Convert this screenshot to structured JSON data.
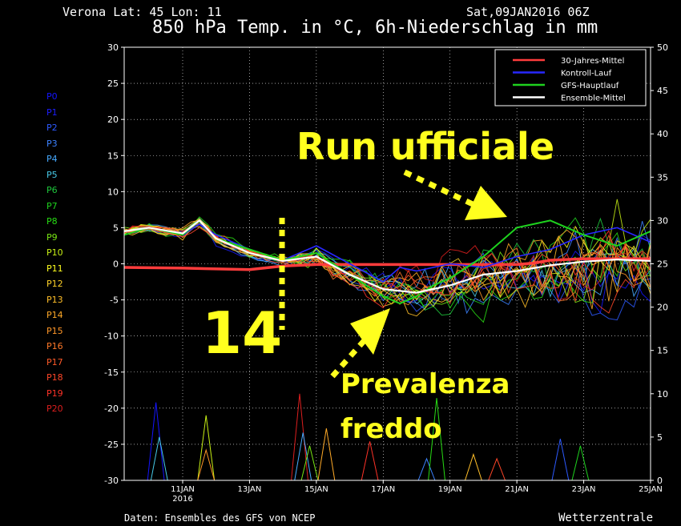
{
  "header": {
    "location": "Verona   Lat: 45 Lon: 11",
    "run_date": "Sat,09JAN2016 06Z",
    "title": "850 hPa Temp. in °C, 6h-Niederschlag in mm"
  },
  "footer": {
    "source": "Daten: Ensembles des GFS von NCEP",
    "brand": "Wetterzentrale"
  },
  "members": [
    {
      "label": "P0",
      "color": "#1414ff"
    },
    {
      "label": "P1",
      "color": "#1e1eff"
    },
    {
      "label": "P2",
      "color": "#2d5aff"
    },
    {
      "label": "P3",
      "color": "#3c82ff"
    },
    {
      "label": "P4",
      "color": "#46aaff"
    },
    {
      "label": "P5",
      "color": "#46c8e6"
    },
    {
      "label": "P6",
      "color": "#1ec83c"
    },
    {
      "label": "P7",
      "color": "#1ed21e"
    },
    {
      "label": "P8",
      "color": "#28dc14"
    },
    {
      "label": "P9",
      "color": "#78e614"
    },
    {
      "label": "P10",
      "color": "#c8f014"
    },
    {
      "label": "P11",
      "color": "#ffff1e"
    },
    {
      "label": "P12",
      "color": "#ffd228"
    },
    {
      "label": "P13",
      "color": "#ffbe28"
    },
    {
      "label": "P14",
      "color": "#ffaa28"
    },
    {
      "label": "P15",
      "color": "#ff9628"
    },
    {
      "label": "P16",
      "color": "#ff7828"
    },
    {
      "label": "P17",
      "color": "#ff5a28"
    },
    {
      "label": "P18",
      "color": "#ff4628"
    },
    {
      "label": "P19",
      "color": "#ff3228"
    },
    {
      "label": "P20",
      "color": "#dc1e1e"
    }
  ],
  "annotations": {
    "run": "Run ufficiale",
    "prevalenza": "Prevalenza",
    "freddo": "freddo",
    "day": "14"
  },
  "chart_data": {
    "type": "line",
    "x_ticks": [
      "11JAN",
      "13JAN",
      "15JAN",
      "17JAN",
      "19JAN",
      "21JAN",
      "23JAN",
      "25JAN"
    ],
    "x_tick_sub": "2016",
    "x_range_days": [
      9.25,
      25
    ],
    "ylim_left": [
      -30,
      30
    ],
    "ylim_right": [
      0,
      50
    ],
    "y_ticks_left": [
      30,
      25,
      20,
      15,
      10,
      5,
      0,
      -5,
      -10,
      -15,
      -20,
      -25,
      -30
    ],
    "y_ticks_right": [
      50,
      45,
      40,
      35,
      30,
      25,
      20,
      15,
      10,
      5,
      0
    ],
    "grid": "dotted",
    "legend_position": "top-right",
    "series": [
      {
        "name": "30-Jahres-Mittel",
        "color": "#ff3c3c",
        "x": [
          9.25,
          11,
          13,
          14,
          15,
          17,
          19,
          21,
          21.5,
          22,
          23,
          24,
          25
        ],
        "y": [
          -0.5,
          -0.6,
          -0.8,
          -0.3,
          -0.1,
          -0.1,
          -0.1,
          -0.1,
          0.1,
          0.5,
          0.7,
          0.7,
          0.7
        ]
      },
      {
        "name": "Kontroll-Lauf",
        "color": "#2828ff",
        "x": [
          9.25,
          10,
          11,
          11.5,
          12,
          13,
          14,
          15,
          16,
          17,
          17.5,
          18,
          18.5,
          19,
          20,
          21,
          22,
          23,
          24,
          25
        ],
        "y": [
          4.5,
          5,
          4,
          5.5,
          4,
          2,
          0.5,
          2.5,
          0,
          -2.5,
          -0.5,
          -1,
          -0.5,
          0,
          -0.5,
          1,
          2,
          4,
          5,
          3
        ]
      },
      {
        "name": "GFS-Hauptlauf",
        "color": "#1ed21e",
        "x": [
          9.25,
          10,
          11,
          11.5,
          12,
          13,
          14,
          15,
          16,
          16.5,
          17,
          17.5,
          18,
          18.5,
          19,
          20,
          21,
          22,
          23,
          24,
          25
        ],
        "y": [
          4,
          5,
          4,
          6,
          3.5,
          2,
          0.5,
          1.5,
          -1.5,
          -3,
          -4.5,
          -5.5,
          -4.5,
          -3,
          -2,
          1,
          5,
          6,
          4,
          2.5,
          4.5
        ]
      },
      {
        "name": "Ensemble-Mittel",
        "color": "#ffffff",
        "x": [
          9.25,
          10,
          11,
          11.5,
          12,
          13,
          14,
          15,
          16,
          17,
          18,
          19,
          20,
          21,
          22,
          23,
          24,
          25
        ],
        "y": [
          4.5,
          5,
          4.2,
          6,
          3.5,
          1.5,
          0.4,
          1,
          -1.5,
          -3.5,
          -4,
          -3,
          -1.5,
          -1,
          -0.2,
          0.3,
          0.6,
          0.4
        ]
      }
    ],
    "precip_peaks_mm": [
      {
        "x": 10.2,
        "v": 9
      },
      {
        "x": 10.3,
        "v": 5
      },
      {
        "x": 11.7,
        "v": 7.5
      },
      {
        "x": 11.7,
        "v": 3.5
      },
      {
        "x": 14.5,
        "v": 10
      },
      {
        "x": 14.6,
        "v": 5.5
      },
      {
        "x": 14.8,
        "v": 4
      },
      {
        "x": 15.3,
        "v": 6
      },
      {
        "x": 16.6,
        "v": 4.5
      },
      {
        "x": 18.3,
        "v": 2.5
      },
      {
        "x": 18.6,
        "v": 9.5
      },
      {
        "x": 19.7,
        "v": 3
      },
      {
        "x": 20.4,
        "v": 2.5
      },
      {
        "x": 22.3,
        "v": 4.8
      },
      {
        "x": 22.9,
        "v": 4
      }
    ]
  }
}
